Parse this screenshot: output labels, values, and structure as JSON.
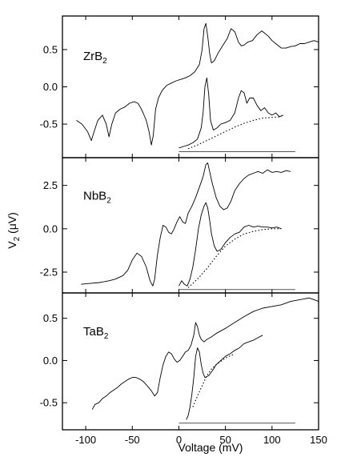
{
  "figure": {
    "xlabel": "Voltage (mV)",
    "ylabel_main": "V",
    "ylabel_sub": "2",
    "ylabel_unit": " (μV)"
  },
  "chart_data": {
    "type": "line",
    "xlim": [
      -125,
      150
    ],
    "x_ticks": [
      -100,
      -50,
      0,
      50,
      100,
      150
    ],
    "x_tick_labels": [
      "-100",
      "-50",
      "0",
      "50",
      "100",
      "150"
    ],
    "panels": [
      {
        "label_main": "ZrB",
        "label_sub": "2",
        "ylim": [
          -0.95,
          0.95
        ],
        "y_ticks": [
          0.5,
          0.0,
          -0.5
        ],
        "y_tick_labels": [
          "0.5",
          "0.0",
          "-0.5"
        ],
        "series": [
          {
            "style": "solid",
            "x": [
              -110,
              -104,
              -98,
              -94,
              -91,
              -87,
              -82,
              -78,
              -75,
              -72,
              -68,
              -63,
              -58,
              -53,
              -48,
              -44,
              -41,
              -38,
              -35,
              -32,
              -29.5,
              -27.5,
              -25,
              -22,
              -18,
              -13,
              -8,
              -3,
              2,
              7,
              12,
              17,
              22,
              25,
              27,
              29,
              31,
              33,
              35,
              38,
              42,
              47,
              52,
              56,
              60,
              64,
              67,
              70,
              74,
              79,
              84,
              89,
              92,
              96,
              100,
              105,
              110,
              115,
              120,
              125,
              130,
              135,
              140,
              145,
              150
            ],
            "y": [
              -0.45,
              -0.5,
              -0.6,
              -0.72,
              -0.6,
              -0.45,
              -0.38,
              -0.5,
              -0.67,
              -0.5,
              -0.35,
              -0.3,
              -0.27,
              -0.22,
              -0.2,
              -0.22,
              -0.28,
              -0.36,
              -0.45,
              -0.6,
              -0.78,
              -0.65,
              -0.3,
              -0.15,
              -0.05,
              0.02,
              0.05,
              0.08,
              0.1,
              0.12,
              0.15,
              0.2,
              0.3,
              0.5,
              0.78,
              0.85,
              0.68,
              0.45,
              0.32,
              0.35,
              0.45,
              0.55,
              0.65,
              0.78,
              0.74,
              0.6,
              0.55,
              0.56,
              0.6,
              0.62,
              0.7,
              0.75,
              0.72,
              0.68,
              0.62,
              0.57,
              0.52,
              0.52,
              0.54,
              0.55,
              0.58,
              0.58,
              0.6,
              0.62,
              0.6
            ]
          },
          {
            "style": "solid",
            "x": [
              0,
              5,
              10,
              15,
              20,
              24,
              26,
              28,
              30,
              32,
              34,
              37,
              41,
              45,
              50,
              55,
              60,
              64,
              67,
              70,
              73,
              76,
              80,
              84,
              88,
              92,
              96,
              100,
              104,
              108,
              112
            ],
            "y": [
              -0.82,
              -0.8,
              -0.78,
              -0.75,
              -0.7,
              -0.55,
              -0.35,
              0.0,
              0.12,
              -0.1,
              -0.45,
              -0.58,
              -0.55,
              -0.5,
              -0.48,
              -0.45,
              -0.35,
              -0.15,
              -0.05,
              -0.08,
              -0.22,
              -0.15,
              -0.15,
              -0.25,
              -0.32,
              -0.28,
              -0.35,
              -0.38,
              -0.35,
              -0.4,
              -0.38
            ]
          },
          {
            "style": "dotted",
            "x": [
              10,
              20,
              30,
              40,
              50,
              60,
              70,
              80,
              90,
              100,
              110
            ],
            "y": [
              -0.83,
              -0.78,
              -0.72,
              -0.66,
              -0.6,
              -0.54,
              -0.49,
              -0.45,
              -0.42,
              -0.41,
              -0.4
            ]
          },
          {
            "style": "baseline",
            "x": [
              0,
              125
            ],
            "y": [
              -0.87,
              -0.87
            ]
          }
        ]
      },
      {
        "label_main": "NbB",
        "label_sub": "2",
        "ylim": [
          -3.7,
          4.1
        ],
        "y_ticks": [
          2.5,
          0.0,
          -2.5
        ],
        "y_tick_labels": [
          "2.5",
          "0.0",
          "-2.5"
        ],
        "series": [
          {
            "style": "solid",
            "x": [
              -105,
              -95,
              -85,
              -75,
              -68,
              -60,
              -55,
              -50,
              -45,
              -40,
              -35,
              -31,
              -28,
              -26,
              -23,
              -20,
              -17,
              -14,
              -11,
              -8,
              -5,
              -2,
              1,
              4,
              7,
              10,
              14,
              18,
              22,
              26,
              29,
              31,
              33,
              36,
              40,
              44,
              48,
              52,
              56,
              60,
              65,
              70,
              75,
              80,
              85,
              90,
              95,
              100,
              105,
              110,
              115,
              120
            ],
            "y": [
              -3.2,
              -3.15,
              -3.1,
              -3.0,
              -2.9,
              -2.7,
              -2.4,
              -1.8,
              -1.4,
              -1.6,
              -2.2,
              -3.0,
              -3.3,
              -2.9,
              -1.5,
              -0.5,
              0.2,
              0.1,
              -0.2,
              -0.3,
              0.0,
              0.4,
              0.7,
              0.4,
              0.3,
              0.9,
              1.3,
              1.8,
              2.4,
              3.0,
              3.7,
              3.8,
              3.3,
              2.6,
              1.8,
              1.3,
              1.1,
              1.2,
              1.6,
              2.2,
              2.6,
              2.9,
              3.1,
              3.2,
              3.3,
              3.2,
              3.4,
              3.25,
              3.3,
              3.25,
              3.35,
              3.3
            ]
          },
          {
            "style": "solid",
            "x": [
              0,
              3,
              6,
              9,
              12,
              15,
              18,
              21,
              24,
              27,
              29,
              31,
              33,
              35,
              38,
              41,
              45,
              50,
              55,
              60,
              65,
              70,
              75,
              80,
              85,
              90,
              95,
              100,
              105,
              110
            ],
            "y": [
              -3.3,
              -3.0,
              -3.2,
              -3.3,
              -2.9,
              -2.2,
              -1.2,
              0.0,
              0.8,
              1.3,
              1.5,
              1.2,
              0.5,
              -0.3,
              -1.0,
              -1.3,
              -1.2,
              -0.8,
              -0.5,
              -0.3,
              -0.2,
              0.1,
              0.2,
              0.1,
              0.15,
              0.1,
              0.1,
              0.05,
              0.1,
              0.0
            ]
          },
          {
            "style": "dotted",
            "x": [
              10,
              20,
              30,
              40,
              50,
              60,
              70,
              80,
              90,
              100,
              110
            ],
            "y": [
              -3.4,
              -2.9,
              -2.3,
              -1.6,
              -1.0,
              -0.6,
              -0.3,
              -0.15,
              -0.05,
              0.0,
              0.0
            ]
          },
          {
            "style": "baseline",
            "x": [
              0,
              125
            ],
            "y": [
              -3.5,
              -3.5
            ]
          }
        ]
      },
      {
        "label_main": "TaB",
        "label_sub": "2",
        "ylim": [
          -0.82,
          0.8
        ],
        "y_ticks": [
          0.5,
          0.0,
          -0.5
        ],
        "y_tick_labels": [
          "0.5",
          "0.0",
          "-0.5"
        ],
        "series": [
          {
            "style": "solid",
            "x": [
              -93,
              -90,
              -86,
              -82,
              -78,
              -74,
              -70,
              -66,
              -62,
              -58,
              -54,
              -50,
              -46,
              -42,
              -38,
              -34,
              -30,
              -26,
              -23,
              -20,
              -17,
              -14,
              -11,
              -8,
              -5,
              -2,
              1,
              4,
              7,
              10,
              13,
              16,
              18,
              20,
              22,
              24,
              27,
              30,
              35,
              40,
              50,
              60,
              70,
              80,
              90,
              100,
              110,
              120,
              130,
              140,
              145,
              150
            ],
            "y": [
              -0.58,
              -0.52,
              -0.5,
              -0.45,
              -0.42,
              -0.38,
              -0.35,
              -0.32,
              -0.28,
              -0.25,
              -0.22,
              -0.2,
              -0.2,
              -0.22,
              -0.25,
              -0.3,
              -0.35,
              -0.42,
              -0.38,
              -0.2,
              -0.05,
              0.05,
              0.1,
              0.08,
              0.02,
              -0.02,
              0.0,
              0.05,
              0.1,
              0.12,
              0.18,
              0.3,
              0.45,
              0.4,
              0.3,
              0.25,
              0.22,
              0.25,
              0.28,
              0.32,
              0.38,
              0.45,
              0.52,
              0.58,
              0.62,
              0.64,
              0.66,
              0.7,
              0.72,
              0.74,
              0.72,
              0.7
            ]
          },
          {
            "style": "solid",
            "x": [
              8,
              10,
              12,
              14,
              16,
              18,
              20,
              22,
              24,
              26,
              28,
              32,
              36,
              40,
              45,
              50,
              55,
              60,
              65,
              70,
              75,
              80,
              85,
              90
            ],
            "y": [
              -0.7,
              -0.65,
              -0.55,
              -0.4,
              -0.2,
              0.05,
              0.15,
              0.1,
              -0.05,
              -0.15,
              -0.2,
              -0.18,
              -0.12,
              -0.05,
              0.0,
              0.05,
              0.08,
              0.12,
              0.15,
              0.2,
              0.22,
              0.24,
              0.27,
              0.3
            ]
          },
          {
            "style": "dotted",
            "x": [
              15,
              20,
              25,
              30,
              35,
              40,
              50,
              60
            ],
            "y": [
              -0.55,
              -0.42,
              -0.3,
              -0.18,
              -0.1,
              -0.05,
              0.03,
              0.08
            ]
          },
          {
            "style": "baseline",
            "x": [
              0,
              125
            ],
            "y": [
              -0.74,
              -0.74
            ]
          }
        ]
      }
    ]
  }
}
